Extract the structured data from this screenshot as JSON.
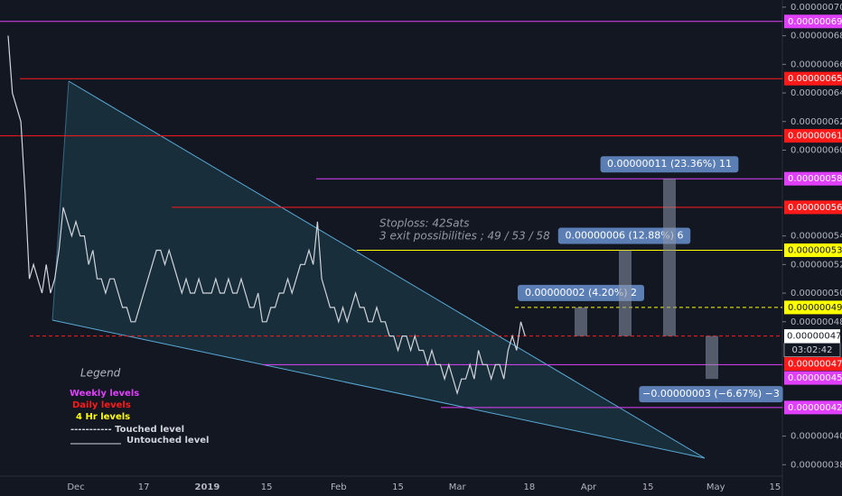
{
  "chart_data": {
    "type": "line",
    "color": "#d1d4dc",
    "categories": [
      null,
      null,
      null,
      null,
      null,
      null,
      null,
      null,
      null,
      null,
      null,
      null,
      null,
      null,
      null,
      null,
      "Dec",
      null,
      null,
      null,
      null,
      null,
      null,
      null,
      null,
      null,
      null,
      null,
      null,
      null,
      null,
      null,
      "17",
      null,
      null,
      null,
      null,
      null,
      null,
      null,
      null,
      null,
      null,
      null,
      null,
      null,
      null,
      "2019",
      null,
      null,
      null,
      null,
      null,
      null,
      null,
      null,
      null,
      null,
      null,
      null,
      null,
      "15",
      null,
      null,
      null,
      null,
      null,
      null,
      null,
      null,
      null,
      null,
      null,
      null,
      null,
      null,
      null,
      null,
      "Feb",
      null,
      null,
      null,
      null,
      null,
      null,
      null,
      null,
      null,
      null,
      null,
      null,
      null,
      "15",
      null,
      null,
      null,
      null,
      null,
      null,
      null,
      null,
      null,
      null,
      null,
      null,
      null,
      "Mar",
      null,
      null,
      null,
      null,
      null,
      null,
      null,
      null,
      null,
      null,
      null,
      null,
      null,
      null,
      null,
      null,
      "18",
      null,
      null,
      null,
      null,
      null,
      null,
      null,
      null,
      null,
      null,
      null,
      null,
      null,
      "Apr",
      null,
      null,
      null,
      null,
      null,
      null,
      null,
      null,
      null,
      null,
      null,
      null,
      null,
      "15",
      null,
      null,
      null,
      null,
      null,
      null,
      null,
      null,
      null,
      null,
      null,
      null,
      null,
      null,
      null,
      "May",
      null,
      null,
      null,
      null,
      null,
      null,
      null,
      null,
      null,
      null,
      null,
      null,
      null,
      "15",
      null,
      null
    ],
    "values": [
      6.8e-07,
      6.4e-07,
      6.3e-07,
      6.2e-07,
      5.7e-07,
      5.1e-07,
      5.2e-07,
      5.1e-07,
      5e-07,
      5.2e-07,
      5e-07,
      5.1e-07,
      5.3e-07,
      5.6e-07,
      5.5e-07,
      5.4e-07,
      5.5e-07,
      5.4e-07,
      5.4e-07,
      5.2e-07,
      5.3e-07,
      5.1e-07,
      5.1e-07,
      5e-07,
      5.1e-07,
      5.1e-07,
      5e-07,
      4.9e-07,
      4.9e-07,
      4.8e-07,
      4.8e-07,
      4.9e-07,
      5e-07,
      5.1e-07,
      5.2e-07,
      5.3e-07,
      5.3e-07,
      5.2e-07,
      5.3e-07,
      5.2e-07,
      5.1e-07,
      5e-07,
      5.1e-07,
      5e-07,
      5e-07,
      5.1e-07,
      5e-07,
      5e-07,
      5e-07,
      5.1e-07,
      5e-07,
      5e-07,
      5.1e-07,
      5e-07,
      5e-07,
      5.1e-07,
      5e-07,
      4.9e-07,
      4.9e-07,
      5e-07,
      4.8e-07,
      4.8e-07,
      4.9e-07,
      4.9e-07,
      5e-07,
      5e-07,
      5.1e-07,
      5e-07,
      5.1e-07,
      5.2e-07,
      5.2e-07,
      5.3e-07,
      5.2e-07,
      5.5e-07,
      5.1e-07,
      5e-07,
      4.9e-07,
      4.9e-07,
      4.8e-07,
      4.9e-07,
      4.8e-07,
      4.9e-07,
      5e-07,
      4.9e-07,
      4.9e-07,
      4.8e-07,
      4.8e-07,
      4.9e-07,
      4.8e-07,
      4.8e-07,
      4.7e-07,
      4.7e-07,
      4.6e-07,
      4.7e-07,
      4.7e-07,
      4.6e-07,
      4.7e-07,
      4.6e-07,
      4.6e-07,
      4.5e-07,
      4.6e-07,
      4.5e-07,
      4.5e-07,
      4.4e-07,
      4.5e-07,
      4.4e-07,
      4.3e-07,
      4.4e-07,
      4.4e-07,
      4.5e-07,
      4.4e-07,
      4.6e-07,
      4.5e-07,
      4.5e-07,
      4.4e-07,
      4.5e-07,
      4.5e-07,
      4.4e-07,
      4.6e-07,
      4.7e-07,
      4.6e-07,
      4.8e-07,
      4.7e-07,
      null,
      null,
      null,
      null,
      null,
      null,
      null,
      null,
      null,
      null,
      null,
      null,
      null,
      null,
      null,
      null,
      null,
      null,
      null,
      null,
      null,
      null,
      null,
      null,
      null,
      null,
      null,
      null,
      null,
      null,
      null,
      null,
      null,
      null,
      null,
      null,
      null,
      null,
      null,
      null,
      null,
      null,
      null,
      null,
      null,
      null,
      null,
      null,
      null,
      null,
      null,
      null,
      null,
      null,
      null,
      null,
      null,
      null,
      null,
      null,
      null
    ],
    "ylim": [
      3.72e-07,
      7.05e-07
    ],
    "yticks": [
      {
        "value": 7e-07,
        "label": "0.00000070"
      },
      {
        "value": 6.8e-07,
        "label": "0.00000068"
      },
      {
        "value": 6.6e-07,
        "label": "0.00000066"
      },
      {
        "value": 6.4e-07,
        "label": "0.00000064"
      },
      {
        "value": 6.2e-07,
        "label": "0.00000062"
      },
      {
        "value": 6e-07,
        "label": "0.00000060"
      },
      {
        "value": 5.4e-07,
        "label": "0.00000054"
      },
      {
        "value": 5.2e-07,
        "label": "0.00000052"
      },
      {
        "value": 5e-07,
        "label": "0.00000050"
      },
      {
        "value": 4.8e-07,
        "label": "0.00000048"
      },
      {
        "value": 4e-07,
        "label": "0.00000040"
      },
      {
        "value": 3.8e-07,
        "label": "0.00000038"
      }
    ],
    "levels": [
      {
        "value": 6.9e-07,
        "label": "0.00000069",
        "color": "#e040fb",
        "style": "solid"
      },
      {
        "value": 6.5e-07,
        "label": "0.00000065",
        "color": "#ff1a1a",
        "style": "solid"
      },
      {
        "value": 6.1e-07,
        "label": "0.00000061",
        "color": "#ff1a1a",
        "style": "solid"
      },
      {
        "value": 5.8e-07,
        "label": "0.00000058",
        "color": "#e040fb",
        "style": "solid"
      },
      {
        "value": 5.6e-07,
        "label": "0.00000056",
        "color": "#ff1a1a",
        "style": "solid"
      },
      {
        "value": 5.3e-07,
        "label": "0.00000053",
        "color": "#ffff00",
        "style": "solid"
      },
      {
        "value": 4.9e-07,
        "label": "0.00000049",
        "color": "#ffff00",
        "style": "dashed"
      },
      {
        "value": 4.7e-07,
        "label": "0.00000047",
        "color": "#ff1a1a",
        "style": "dashed"
      },
      {
        "value": 4.5e-07,
        "label": "0.00000045",
        "color": "#e040fb",
        "style": "solid"
      },
      {
        "value": 4.2e-07,
        "label": "0.00000042",
        "color": "#e040fb",
        "style": "solid"
      }
    ],
    "price": {
      "value": 4.7e-07,
      "label": "0.00000047",
      "countdown": "03:02:42"
    },
    "measures": [
      {
        "value": 2e-08,
        "label": "0.00000002 (4.20%) 2"
      },
      {
        "value": 6e-08,
        "label": "0.00000006 (12.88%) 6"
      },
      {
        "value": 1.1e-07,
        "label": "0.00000011 (23.36%) 11"
      },
      {
        "value": -3e-08,
        "label": "−0.00000003 (−6.67%) −3"
      }
    ],
    "annotations": [
      "Stoploss: 42Sats",
      "3 exit possibilities ; 49 / 53 / 58"
    ],
    "legend": {
      "title": "Legend",
      "weekly": "Weekly levels",
      "daily": "Daily levels",
      "hr4": "4 Hr levels",
      "touched": "----------- Touched level",
      "untouched": "Untouched level"
    }
  }
}
